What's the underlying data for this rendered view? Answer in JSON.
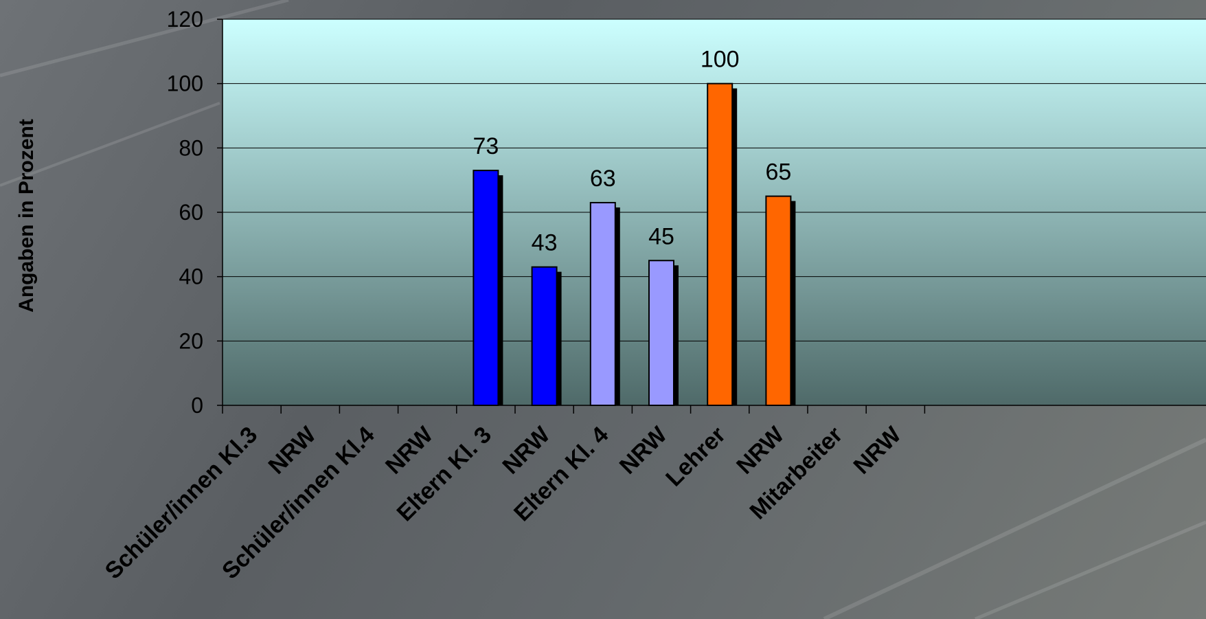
{
  "chart_data": {
    "type": "bar",
    "title": "",
    "xlabel": "",
    "ylabel": "Angaben in Prozent",
    "ylim": [
      0,
      120
    ],
    "yticks": [
      0,
      20,
      40,
      60,
      80,
      100,
      120
    ],
    "grid": true,
    "legend": "none",
    "categories": [
      "Schüler/innen Kl.3",
      "NRW",
      "Schüler/innen Kl.4",
      "NRW",
      "Eltern Kl. 3",
      "NRW",
      "Eltern Kl. 4",
      "NRW",
      "Lehrer",
      "NRW",
      "Mitarbeiter",
      "NRW"
    ],
    "values": [
      null,
      null,
      null,
      null,
      73,
      43,
      63,
      45,
      100,
      65,
      null,
      null
    ],
    "bar_colors": [
      "#0000ff",
      "#0000ff",
      "#0000ff",
      "#0000ff",
      "#0000ff",
      "#0000ff",
      "#9999ff",
      "#9999ff",
      "#ff6600",
      "#ff6600",
      "#ff6600",
      "#ff6600"
    ]
  },
  "colors": {
    "plot_top": "#ccffff",
    "plot_bottom": "#4f6a69",
    "shadow": "#000000",
    "gridline": "#000000"
  }
}
